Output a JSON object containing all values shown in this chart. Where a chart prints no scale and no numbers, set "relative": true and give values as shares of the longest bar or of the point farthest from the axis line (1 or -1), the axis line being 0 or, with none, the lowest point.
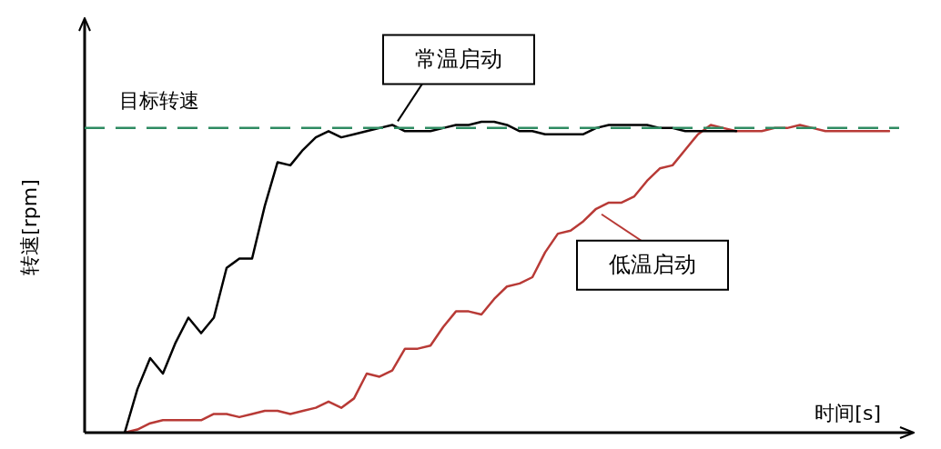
{
  "chart_data": {
    "type": "line",
    "relative": true,
    "xlabel": "时间[s]",
    "ylabel": "转速[rpm]",
    "marker": "none",
    "line_style": "solid",
    "categories": [
      null,
      null,
      null,
      null,
      null,
      null,
      null,
      null,
      null,
      null,
      null,
      null,
      null,
      null,
      null,
      null,
      null,
      null,
      null,
      null,
      null,
      null,
      null,
      null,
      null,
      null,
      null,
      null,
      null,
      null,
      null,
      null,
      null,
      null,
      null,
      null,
      null,
      null,
      null,
      null,
      null,
      null,
      null,
      null,
      null,
      null,
      null,
      null,
      null,
      null,
      null,
      null,
      null,
      null,
      null,
      null,
      null,
      null,
      null,
      null,
      null,
      null,
      null,
      null
    ],
    "series": [
      {
        "name": "常温启动",
        "color": "#000000",
        "values": [
          null,
          null,
          null,
          0,
          0.14,
          0.24,
          0.19,
          0.29,
          0.37,
          0.32,
          0.37,
          0.53,
          0.56,
          0.56,
          0.73,
          0.87,
          0.86,
          0.91,
          0.95,
          0.97,
          0.95,
          0.96,
          0.97,
          0.98,
          0.99,
          0.97,
          0.97,
          0.97,
          0.98,
          0.99,
          0.99,
          1.0,
          1.0,
          0.99,
          0.97,
          0.97,
          0.96,
          0.96,
          0.96,
          0.96,
          0.98,
          0.99,
          0.99,
          0.99,
          0.99,
          0.98,
          0.98,
          0.97,
          0.97,
          0.97,
          0.97,
          0.97,
          null,
          null,
          null,
          null,
          null,
          null,
          null,
          null,
          null,
          null,
          null,
          null
        ]
      },
      {
        "name": "低温启动",
        "color": "#b83a36",
        "values": [
          null,
          null,
          null,
          0,
          0.01,
          0.03,
          0.04,
          0.04,
          0.04,
          0.04,
          0.06,
          0.06,
          0.05,
          0.06,
          0.07,
          0.07,
          0.06,
          0.07,
          0.08,
          0.1,
          0.08,
          0.11,
          0.19,
          0.18,
          0.2,
          0.27,
          0.27,
          0.28,
          0.34,
          0.39,
          0.39,
          0.38,
          0.43,
          0.47,
          0.48,
          0.5,
          0.58,
          0.64,
          0.65,
          0.68,
          0.72,
          0.74,
          0.74,
          0.76,
          0.81,
          0.85,
          0.86,
          0.91,
          0.96,
          0.99,
          0.98,
          0.97,
          0.97,
          0.97,
          0.98,
          0.98,
          0.99,
          0.98,
          0.97,
          0.97,
          0.97,
          0.97,
          0.97,
          0.97
        ]
      }
    ],
    "ref_lines": [
      {
        "axis": "y",
        "value": 0.98,
        "label": "目标转速",
        "color": "#2e8b62",
        "line_style": "dashed"
      }
    ]
  }
}
